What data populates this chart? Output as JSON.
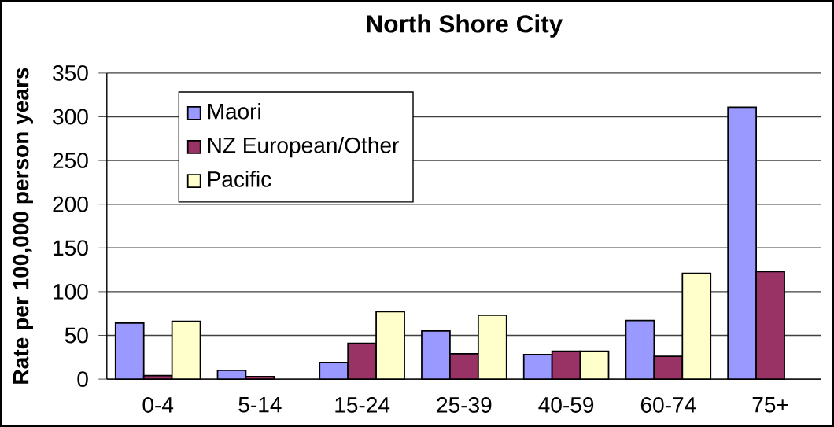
{
  "chart_data": {
    "type": "bar",
    "title": "North Shore City",
    "ylabel": "Rate per 100,000 person years",
    "categories": [
      "0-4",
      "5-14",
      "15-24",
      "25-39",
      "40-59",
      "60-74",
      "75+"
    ],
    "series": [
      {
        "name": "Maori",
        "color": "#9999ff",
        "values": [
          64,
          10,
          19,
          55,
          28,
          67,
          311
        ]
      },
      {
        "name": "NZ European/Other",
        "color": "#993366",
        "values": [
          4,
          3,
          41,
          29,
          32,
          26,
          123
        ]
      },
      {
        "name": "Pacific",
        "color": "#ffffcc",
        "values": [
          66,
          null,
          77,
          73,
          32,
          121,
          null
        ]
      }
    ],
    "ylim": [
      0,
      350
    ],
    "yticks": [
      0,
      50,
      100,
      150,
      200,
      250,
      300,
      350
    ],
    "grid": "y",
    "legend": "top left"
  }
}
